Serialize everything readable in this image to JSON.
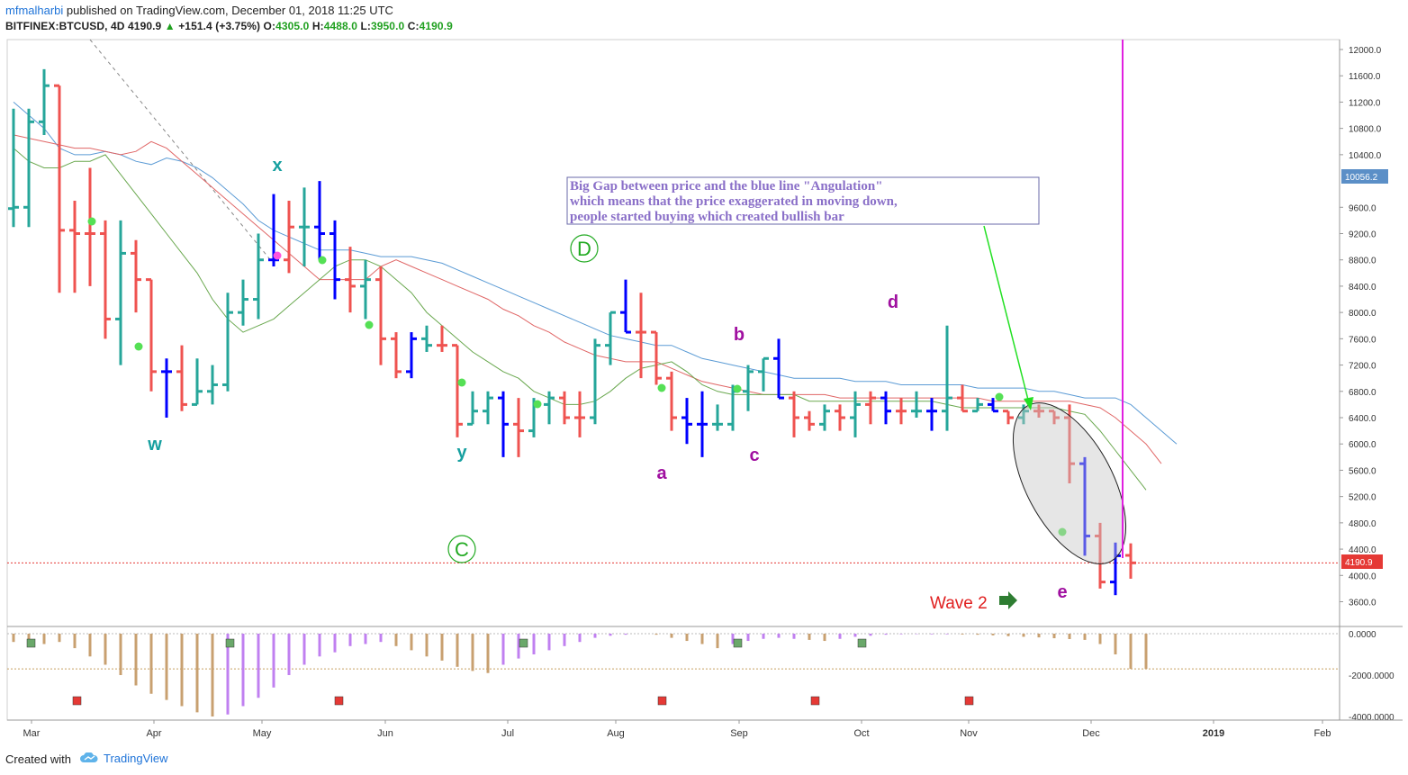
{
  "header": {
    "user": "mfmalharbi",
    "published": "published on TradingView.com, December 01, 2018 11:25 UTC",
    "symbol": "BITFINEX:BTCUSD, 4D",
    "last": "4190.9",
    "change": "+151.4 (+3.75%)",
    "open_label": "O:",
    "open": "4305.0",
    "high_label": "H:",
    "high": "4488.0",
    "low_label": "L:",
    "low": "3950.0",
    "close_label": "C:",
    "close": "4190.9"
  },
  "footer": {
    "created_with": "Created with",
    "brand": "TradingView"
  },
  "colors": {
    "up": "#26a69a",
    "down": "#ef5350",
    "highlight": "#0000ff",
    "ma_blue": "#5b9bd5",
    "ma_red": "#e06666",
    "ma_green": "#6aa84f",
    "magenta": "#e020e0",
    "wave_green": "#22aa22"
  },
  "chart_data": [
    {
      "type": "bar",
      "subtype": "ohlc",
      "symbol": "BITFINEX:BTCUSD",
      "timeframe": "4D",
      "ylim": [
        3400,
        12200
      ],
      "y_scale": "linear",
      "y_ticks": [
        "12000.0",
        "11600.0",
        "11200.0",
        "10800.0",
        "10400.0",
        "9600.0",
        "9200.0",
        "8800.0",
        "8400.0",
        "8000.0",
        "7600.0",
        "7200.0",
        "6800.0",
        "6400.0",
        "6000.0",
        "5600.0",
        "5200.0",
        "4800.0",
        "4400.0",
        "4000.0",
        "3600.0"
      ],
      "price_tags": [
        "10056.2",
        "4190.9"
      ],
      "x_ticks": [
        "Mar",
        "Apr",
        "May",
        "Jun",
        "Jul",
        "Aug",
        "Sep",
        "Oct",
        "Nov",
        "Dec",
        "2019",
        "Feb"
      ],
      "bars": [
        [
          9580,
          11100,
          9300,
          9600,
          "up"
        ],
        [
          9600,
          11100,
          9300,
          10900,
          "up"
        ],
        [
          10900,
          11700,
          10700,
          11450,
          "up"
        ],
        [
          11450,
          11450,
          8300,
          9250,
          "down"
        ],
        [
          9250,
          9700,
          8300,
          9200,
          "down"
        ],
        [
          9200,
          10200,
          8400,
          9200,
          "down"
        ],
        [
          9200,
          9400,
          7600,
          7900,
          "down"
        ],
        [
          7900,
          9400,
          7200,
          8900,
          "up"
        ],
        [
          8900,
          9100,
          8000,
          8500,
          "down"
        ],
        [
          8500,
          8500,
          6800,
          7100,
          "down"
        ],
        [
          7100,
          7300,
          6400,
          7100,
          "blue"
        ],
        [
          7100,
          7500,
          6500,
          6600,
          "down"
        ],
        [
          6600,
          7300,
          6600,
          6800,
          "up"
        ],
        [
          6800,
          7200,
          6600,
          6900,
          "up"
        ],
        [
          6900,
          8300,
          6800,
          8000,
          "up"
        ],
        [
          8000,
          8500,
          7800,
          8200,
          "up"
        ],
        [
          8200,
          9200,
          7900,
          8800,
          "up"
        ],
        [
          8800,
          9800,
          8700,
          8800,
          "blue"
        ],
        [
          8800,
          9700,
          8600,
          9300,
          "down"
        ],
        [
          9300,
          9900,
          8700,
          9300,
          "up"
        ],
        [
          9300,
          10000,
          8800,
          9200,
          "blue"
        ],
        [
          9200,
          9400,
          8200,
          8500,
          "blue"
        ],
        [
          8500,
          9000,
          8000,
          8400,
          "down"
        ],
        [
          8400,
          8800,
          7900,
          8500,
          "up"
        ],
        [
          8500,
          8700,
          7200,
          7600,
          "down"
        ],
        [
          7600,
          7700,
          7000,
          7100,
          "down"
        ],
        [
          7100,
          7700,
          7000,
          7600,
          "blue"
        ],
        [
          7600,
          7800,
          7400,
          7500,
          "up"
        ],
        [
          7500,
          7800,
          7400,
          7500,
          "down"
        ],
        [
          7500,
          7500,
          6100,
          6300,
          "down"
        ],
        [
          6300,
          6800,
          6300,
          6500,
          "up"
        ],
        [
          6500,
          6800,
          6300,
          6700,
          "up"
        ],
        [
          6700,
          6800,
          5800,
          6300,
          "blue"
        ],
        [
          6300,
          6700,
          5800,
          6200,
          "down"
        ],
        [
          6200,
          6700,
          6100,
          6600,
          "up"
        ],
        [
          6600,
          6800,
          6300,
          6700,
          "up"
        ],
        [
          6700,
          6800,
          6300,
          6400,
          "down"
        ],
        [
          6400,
          6800,
          6100,
          6400,
          "down"
        ],
        [
          6400,
          7600,
          6300,
          7500,
          "up"
        ],
        [
          7500,
          8000,
          7200,
          8000,
          "up"
        ],
        [
          8000,
          8500,
          7700,
          7700,
          "blue"
        ],
        [
          7700,
          8300,
          7000,
          7700,
          "down"
        ],
        [
          7700,
          7700,
          6900,
          7000,
          "down"
        ],
        [
          7000,
          7100,
          6200,
          6400,
          "down"
        ],
        [
          6400,
          6700,
          6000,
          6300,
          "blue"
        ],
        [
          6300,
          6800,
          5800,
          6300,
          "blue"
        ],
        [
          6300,
          6600,
          6200,
          6300,
          "up"
        ],
        [
          6300,
          6900,
          6200,
          6800,
          "up"
        ],
        [
          6800,
          7200,
          6500,
          7100,
          "up"
        ],
        [
          7100,
          7300,
          6800,
          7300,
          "up"
        ],
        [
          7300,
          7600,
          6700,
          6700,
          "blue"
        ],
        [
          6700,
          6800,
          6100,
          6400,
          "down"
        ],
        [
          6400,
          6500,
          6200,
          6300,
          "down"
        ],
        [
          6300,
          6600,
          6200,
          6500,
          "up"
        ],
        [
          6500,
          6600,
          6200,
          6400,
          "down"
        ],
        [
          6400,
          6800,
          6100,
          6600,
          "up"
        ],
        [
          6600,
          6800,
          6300,
          6700,
          "down"
        ],
        [
          6700,
          6800,
          6300,
          6500,
          "blue"
        ],
        [
          6500,
          6700,
          6300,
          6500,
          "down"
        ],
        [
          6500,
          6800,
          6400,
          6500,
          "up"
        ],
        [
          6500,
          6700,
          6200,
          6500,
          "blue"
        ],
        [
          6500,
          7800,
          6200,
          6700,
          "up"
        ],
        [
          6700,
          6900,
          6500,
          6500,
          "down"
        ],
        [
          6500,
          6700,
          6500,
          6600,
          "up"
        ],
        [
          6600,
          6700,
          6500,
          6500,
          "blue"
        ],
        [
          6500,
          6500,
          6300,
          6400,
          "down"
        ],
        [
          6400,
          6600,
          6300,
          6500,
          "up"
        ],
        [
          6500,
          6600,
          6400,
          6500,
          "down"
        ],
        [
          6500,
          6500,
          6300,
          6400,
          "down"
        ],
        [
          6400,
          6600,
          5400,
          5700,
          "down"
        ],
        [
          5700,
          5800,
          4300,
          4600,
          "blue"
        ],
        [
          4600,
          4800,
          3800,
          3900,
          "down"
        ],
        [
          3900,
          4500,
          3700,
          4300,
          "blue"
        ],
        [
          4305,
          4488,
          3950,
          4190.9,
          "down"
        ]
      ],
      "ma_blue": [
        11200,
        11000,
        10800,
        10500,
        10400,
        10400,
        10450,
        10400,
        10300,
        10250,
        10350,
        10300,
        10200,
        10050,
        9850,
        9650,
        9400,
        9250,
        9150,
        9050,
        8950,
        8950,
        8950,
        8900,
        8850,
        8850,
        8850,
        8800,
        8750,
        8650,
        8550,
        8450,
        8350,
        8250,
        8150,
        8050,
        7950,
        7850,
        7750,
        7650,
        7600,
        7550,
        7500,
        7500,
        7400,
        7300,
        7250,
        7200,
        7150,
        7100,
        7050,
        7000,
        7000,
        7000,
        7000,
        6950,
        6950,
        6950,
        6900,
        6900,
        6900,
        6900,
        6900,
        6850,
        6850,
        6850,
        6850,
        6800,
        6800,
        6750,
        6700,
        6700,
        6700,
        6600,
        6400,
        6200,
        6000
      ],
      "ma_red": [
        10700,
        10650,
        10600,
        10550,
        10500,
        10500,
        10450,
        10400,
        10450,
        10600,
        10500,
        10300,
        10100,
        9900,
        9700,
        9500,
        9300,
        9100,
        8900,
        8700,
        8500,
        8500,
        8500,
        8500,
        8700,
        8800,
        8700,
        8600,
        8500,
        8400,
        8300,
        8200,
        8050,
        7950,
        7800,
        7700,
        7550,
        7450,
        7350,
        7300,
        7250,
        7250,
        7250,
        7150,
        7050,
        6950,
        6900,
        6850,
        6800,
        6750,
        6750,
        6750,
        6750,
        6750,
        6700,
        6700,
        6700,
        6700,
        6700,
        6700,
        6700,
        6700,
        6700,
        6700,
        6650,
        6650,
        6650,
        6650,
        6650,
        6650,
        6600,
        6550,
        6400,
        6200,
        6000,
        5700
      ],
      "ma_green": [
        10500,
        10300,
        10200,
        10200,
        10300,
        10300,
        10400,
        10100,
        9800,
        9500,
        9200,
        8900,
        8600,
        8200,
        7900,
        7700,
        7800,
        7900,
        8100,
        8300,
        8500,
        8700,
        8800,
        8800,
        8700,
        8500,
        8300,
        8000,
        7800,
        7600,
        7400,
        7250,
        7100,
        7000,
        6800,
        6700,
        6600,
        6600,
        6650,
        6800,
        7000,
        7150,
        7200,
        7250,
        7100,
        6900,
        6800,
        6750,
        6750,
        6750,
        6750,
        6750,
        6650,
        6650,
        6650,
        6650,
        6650,
        6650,
        6650,
        6650,
        6650,
        6600,
        6550,
        6550,
        6550,
        6550,
        6550,
        6550,
        6550,
        6500,
        6450,
        6200,
        5900,
        5600,
        5300
      ],
      "wave_labels": [
        "w",
        "x",
        "y",
        "D",
        "a",
        "b",
        "c",
        "d",
        "e",
        "C"
      ],
      "annotation": "Big Gap between price and the blue line \"Angulation\" which means that the price exaggerated in moving down, people started buying which created bullish bar",
      "wave_note": "Wave 2"
    },
    {
      "type": "bar",
      "subtype": "oscillator",
      "ylim": [
        -4000,
        0
      ],
      "y_ticks": [
        "0.0000",
        "-2000.0000",
        "-4000.0000"
      ],
      "values": [
        -400,
        -600,
        -500,
        -400,
        -700,
        -1100,
        -1500,
        -2000,
        -2500,
        -2900,
        -3200,
        -3500,
        -3800,
        -4000,
        -3900,
        -3500,
        -3100,
        -2600,
        -2000,
        -1500,
        -1100,
        -900,
        -600,
        -500,
        -400,
        -600,
        -800,
        -1100,
        -1300,
        -1600,
        -1800,
        -1900,
        -1500,
        -1200,
        -1000,
        -800,
        -600,
        -400,
        -200,
        -100,
        -50,
        0,
        -50,
        -200,
        -350,
        -500,
        -700,
        -500,
        -350,
        -250,
        -200,
        -250,
        -300,
        -350,
        -250,
        -150,
        -100,
        -50,
        -30,
        -20,
        -30,
        -30,
        -40,
        -50,
        -80,
        -120,
        -150,
        -180,
        -220,
        -260,
        -300,
        -500,
        -1000,
        -1700,
        -1700
      ],
      "colors": [
        "down",
        "down",
        "down",
        "down",
        "down",
        "down",
        "down",
        "down",
        "down",
        "down",
        "down",
        "down",
        "down",
        "down",
        "up",
        "up",
        "up",
        "up",
        "up",
        "up",
        "up",
        "up",
        "up",
        "up",
        "up",
        "down",
        "down",
        "down",
        "down",
        "down",
        "down",
        "down",
        "up",
        "up",
        "up",
        "up",
        "up",
        "up",
        "up",
        "up",
        "up",
        "up",
        "down",
        "down",
        "down",
        "down",
        "down",
        "up",
        "up",
        "up",
        "up",
        "up",
        "down",
        "down",
        "up",
        "up",
        "up",
        "up",
        "up",
        "up",
        "up",
        "up",
        "down",
        "down",
        "down",
        "down",
        "down",
        "down",
        "down",
        "down",
        "down",
        "down",
        "down",
        "down",
        "down"
      ]
    }
  ]
}
